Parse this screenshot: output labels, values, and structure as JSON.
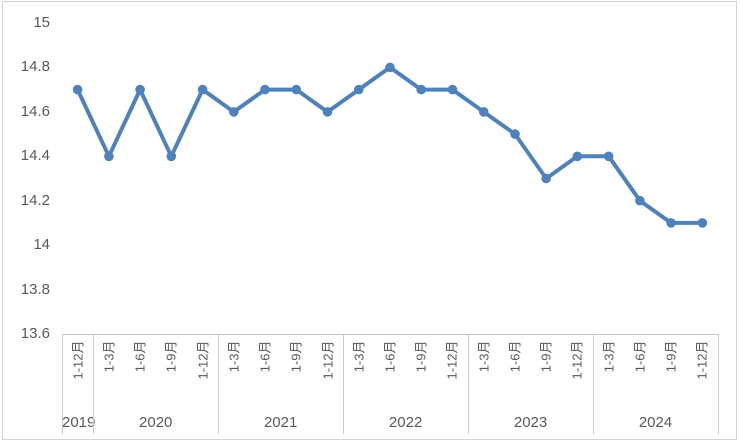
{
  "chart_data": {
    "type": "line",
    "title": "",
    "xlabel": "",
    "ylabel": "",
    "legend": "none",
    "grid": "off",
    "ylim": [
      13.6,
      15
    ],
    "y_tick_labels": [
      "15",
      "14.8",
      "14.6",
      "14.4",
      "14.2",
      "14",
      "13.8",
      "13.6"
    ],
    "y_tick_values": [
      15,
      14.8,
      14.6,
      14.4,
      14.2,
      14,
      13.8,
      13.6
    ],
    "x_categories": [
      {
        "year": "2019",
        "periods": [
          "1-12月"
        ]
      },
      {
        "year": "2020",
        "periods": [
          "1-3月",
          "1-6月",
          "1-9月",
          "1-12月"
        ]
      },
      {
        "year": "2021",
        "periods": [
          "1-3月",
          "1-6月",
          "1-9月",
          "1-12月"
        ]
      },
      {
        "year": "2022",
        "periods": [
          "1-3月",
          "1-6月",
          "1-9月",
          "1-12月"
        ]
      },
      {
        "year": "2023",
        "periods": [
          "1-3月",
          "1-6月",
          "1-9月",
          "1-12月"
        ]
      },
      {
        "year": "2024",
        "periods": [
          "1-3月",
          "1-6月",
          "1-9月",
          "1-12月"
        ]
      }
    ],
    "series": [
      {
        "name": "",
        "values": [
          14.7,
          14.4,
          14.7,
          14.4,
          14.7,
          14.6,
          14.7,
          14.7,
          14.6,
          14.7,
          14.8,
          14.7,
          14.7,
          14.6,
          14.5,
          14.3,
          14.4,
          14.4,
          14.2,
          14.1,
          14.1
        ]
      }
    ],
    "colors": {
      "series_line": "#4F81BD",
      "marker_fill": "#4F81BD",
      "tick_label": "#595959",
      "axis_line": "#c6c6c6",
      "chart_border": "#d3d3d3"
    }
  }
}
